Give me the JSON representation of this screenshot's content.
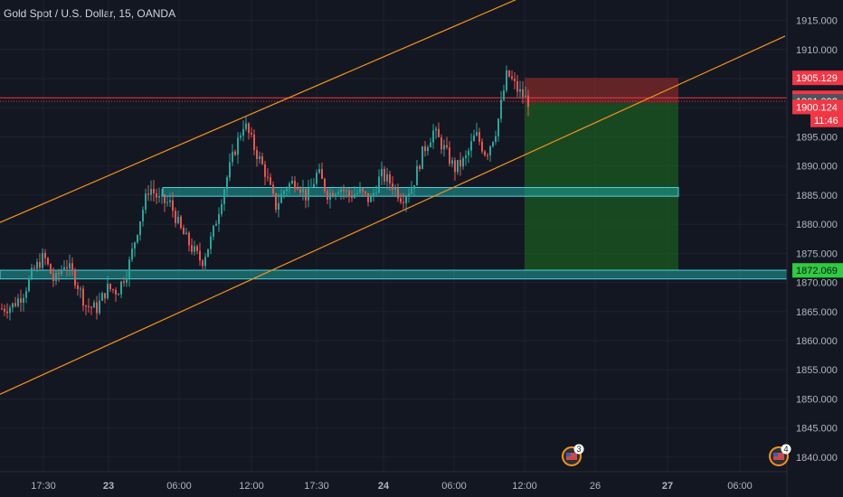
{
  "header": {
    "symbol": "Gold Spot / U.S. Dollar, 15, OANDA"
  },
  "colors": {
    "background": "#131722",
    "grid": "#1e222d",
    "axis_text": "#b2b5be",
    "up": "#26a69a",
    "down": "#ef5350",
    "channel": "#f7931a",
    "zone_fill": "#1fa39a",
    "zone_border": "#4dd0e1",
    "target_fill": "#1b5e20",
    "stop_fill": "#7f2a2a",
    "resistance_line": "#f23645",
    "badge_red": "#f23645",
    "badge_gray": "#4c525e",
    "badge_green": "#2ecc40"
  },
  "chart_data": {
    "type": "candlestick",
    "y_ticks": [
      "1915.000",
      "1910.000",
      "1905.000",
      "1900.000",
      "1895.000",
      "1890.000",
      "1885.000",
      "1880.000",
      "1875.000",
      "1870.000",
      "1865.000",
      "1860.000",
      "1855.000",
      "1850.000",
      "1845.000",
      "1840.000"
    ],
    "ylim": [
      1837.5,
      1918.5
    ],
    "x_ticks": [
      "17:30",
      "23",
      "06:00",
      "12:00",
      "17:30",
      "24",
      "06:00",
      "12:00",
      "26",
      "27",
      "06:00"
    ],
    "x_tick_bold": [
      false,
      true,
      false,
      false,
      false,
      true,
      false,
      false,
      false,
      true,
      false
    ],
    "price_badges": [
      {
        "label": "1905.129",
        "value": 1905.129,
        "style": "red"
      },
      {
        "label": "1901.709",
        "value": 1901.709,
        "style": "red"
      },
      {
        "label": "1901.092",
        "value": 1901.092,
        "style": "gray"
      },
      {
        "label": "1900.124",
        "value": 1900.124,
        "style": "red"
      },
      {
        "label": "11:46",
        "value": 1897.9,
        "style": "red"
      },
      {
        "label": "1872.069",
        "value": 1872.069,
        "style": "green"
      }
    ],
    "horizontal_lines": [
      {
        "name": "resistance",
        "value": 1901.709,
        "style": "solid"
      },
      {
        "name": "current",
        "value": 1901.092,
        "style": "dotted"
      }
    ],
    "zones": [
      {
        "name": "upper-zone",
        "top": 1886.3,
        "bottom": 1884.8,
        "x_start": "21:00 (23rd)",
        "x_end": "04:00 (26th)"
      },
      {
        "name": "lower-zone",
        "top": 1872.1,
        "bottom": 1870.6,
        "x_start": "start",
        "x_end": "end"
      }
    ],
    "position": {
      "entry": 1900.8,
      "stop": 1905.129,
      "target": 1872.069
    },
    "channel": [
      {
        "name": "upper-channel",
        "from": [
          0,
          1880.3
        ],
        "to": [
          577,
          1919.0
        ]
      },
      {
        "name": "lower-channel",
        "from": [
          0,
          1850.8
        ],
        "to": [
          868,
          1912.3
        ]
      }
    ],
    "event_markers": [
      {
        "label": "3"
      },
      {
        "label": "4"
      }
    ],
    "seed_points": [
      1865.5,
      1866.0,
      1868.0,
      1872.0,
      1874.5,
      1870.0,
      1873.5,
      1870.5,
      1866.0,
      1865.5,
      1869.0,
      1868.5,
      1872.5,
      1880.0,
      1886.5,
      1884.0,
      1883.5,
      1879.0,
      1876.0,
      1873.5,
      1878.0,
      1885.5,
      1892.0,
      1897.5,
      1893.0,
      1889.0,
      1883.0,
      1886.5,
      1887.5,
      1884.5,
      1889.0,
      1885.0,
      1886.5,
      1885.0,
      1885.5,
      1884.0,
      1888.5,
      1887.0,
      1884.5,
      1886.5,
      1892.5,
      1896.0,
      1893.0,
      1889.5,
      1891.0,
      1895.5,
      1892.0,
      1896.5,
      1906.0,
      1903.0,
      1901.092
    ]
  }
}
